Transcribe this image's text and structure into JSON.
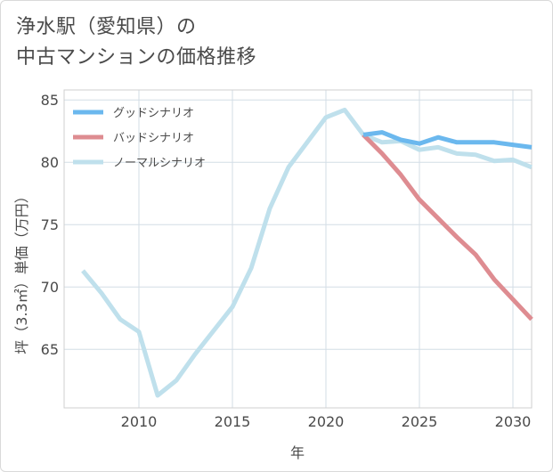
{
  "title": {
    "line1": "浄水駅（愛知県）の",
    "line2": "中古マンションの価格推移"
  },
  "chart_data": {
    "type": "line",
    "xlabel": "年",
    "ylabel": "坪（3.3㎡）単価（万円）",
    "xlim": [
      2006,
      2031
    ],
    "ylim": [
      60.3,
      85.8
    ],
    "xticks": [
      2010,
      2015,
      2020,
      2025,
      2030
    ],
    "yticks": [
      65,
      70,
      75,
      80,
      85
    ],
    "grid": true,
    "legend_position": "top-left",
    "series": [
      {
        "name": "グッドシナリオ",
        "color": "#6bb8ee",
        "x": [
          2022,
          2023,
          2024,
          2025,
          2026,
          2027,
          2028,
          2029,
          2030,
          2031
        ],
        "y": [
          82.2,
          82.4,
          81.8,
          81.5,
          82.0,
          81.6,
          81.6,
          81.6,
          81.4,
          81.2
        ]
      },
      {
        "name": "バッドシナリオ",
        "color": "#de8c91",
        "x": [
          2022,
          2023,
          2024,
          2025,
          2026,
          2027,
          2028,
          2029,
          2030,
          2031
        ],
        "y": [
          82.2,
          80.7,
          79.0,
          77.0,
          75.5,
          74.0,
          72.6,
          70.6,
          69.0,
          67.4
        ]
      },
      {
        "name": "ノーマルシナリオ",
        "color": "#bfe0ec",
        "x": [
          2007,
          2008,
          2009,
          2010,
          2011,
          2012,
          2013,
          2014,
          2015,
          2016,
          2017,
          2018,
          2019,
          2020,
          2021,
          2022,
          2023,
          2024,
          2025,
          2026,
          2027,
          2028,
          2029,
          2030,
          2031
        ],
        "y": [
          71.3,
          69.5,
          67.4,
          66.4,
          61.3,
          62.5,
          64.6,
          66.5,
          68.4,
          71.5,
          76.3,
          79.6,
          81.6,
          83.6,
          84.2,
          82.2,
          81.6,
          81.7,
          81.0,
          81.2,
          80.7,
          80.6,
          80.1,
          80.2,
          79.6
        ]
      }
    ]
  }
}
